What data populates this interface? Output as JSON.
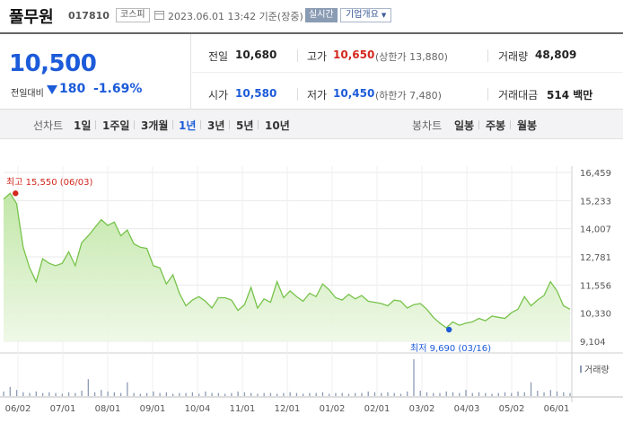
{
  "header": {
    "stock_name": "풀무원",
    "stock_code": "017810",
    "market": "코스피",
    "as_of": "2023.06.01 13:42 기준(장중)",
    "realtime_label": "실시간",
    "company_info_label": "기업개요",
    "icons": [
      "calendar-icon",
      "dropdown-caret-icon"
    ]
  },
  "price": {
    "current": "10,500",
    "change_label": "전일대비",
    "change_direction": "down",
    "change_amount": "180",
    "change_percent": "-1.69%",
    "down_color": "#1c5bd9"
  },
  "details": {
    "prev_close_label": "전일",
    "prev_close": "10,680",
    "high_label": "고가",
    "high": "10,650",
    "upper_limit_text": "(상한가 13,880)",
    "volume_label": "거래량",
    "volume": "48,809",
    "open_label": "시가",
    "open": "10,580",
    "low_label": "저가",
    "low": "10,450",
    "lower_limit_text": "(하한가 7,480)",
    "amount_label": "거래대금",
    "amount": "514 백만"
  },
  "period_bar": {
    "line_chart_label": "선차트",
    "periods": [
      "1일",
      "1주일",
      "3개월",
      "1년",
      "3년",
      "5년",
      "10년"
    ],
    "selected_period": "1년",
    "candle_chart_label": "봉차트",
    "candle_periods": [
      "일봉",
      "주봉",
      "월봉"
    ]
  },
  "chart_data": {
    "type": "area",
    "y_ticks": [
      "16,459",
      "15,233",
      "14,007",
      "12,781",
      "11,556",
      "10,330",
      "9,104"
    ],
    "ylim": [
      9104,
      16459
    ],
    "x_ticks": [
      "06/02",
      "07/01",
      "08/01",
      "09/01",
      "10/04",
      "11/01",
      "12/01",
      "01/02",
      "02/01",
      "03/02",
      "04/03",
      "05/02",
      "06/01"
    ],
    "high_annotation": "최고 15,550 (06/03)",
    "low_annotation": "최저 9,690 (03/16)",
    "volume_legend": "거래량",
    "line_color": "#77c34b",
    "high_color": "#d3281f",
    "low_color": "#1c5bd9",
    "series": [
      {
        "dates": [
          "06/02",
          "06/03",
          "06/08",
          "06/13",
          "06/16",
          "06/21",
          "06/24",
          "06/29",
          "07/01",
          "07/06",
          "07/11",
          "07/14",
          "07/19",
          "07/22",
          "07/27",
          "08/01",
          "08/04",
          "08/09",
          "08/12",
          "08/17",
          "08/22",
          "08/25",
          "08/30",
          "09/01",
          "09/06",
          "09/09",
          "09/15",
          "09/20",
          "09/26",
          "09/30",
          "10/04",
          "10/07",
          "10/12",
          "10/17",
          "10/21",
          "10/26",
          "10/31",
          "11/03",
          "11/08",
          "11/11",
          "11/16",
          "11/21",
          "11/25",
          "11/30",
          "12/05",
          "12/08",
          "12/13",
          "12/16",
          "12/21",
          "12/26",
          "12/29",
          "01/03",
          "01/06",
          "01/11",
          "01/16",
          "01/19",
          "01/25",
          "01/30",
          "02/02",
          "02/07",
          "02/10",
          "02/15",
          "02/20",
          "02/23",
          "02/28",
          "03/03",
          "03/08",
          "03/13",
          "03/16",
          "03/21",
          "03/24",
          "03/29",
          "04/03",
          "04/06",
          "04/11",
          "04/14",
          "04/19",
          "04/24",
          "04/27",
          "05/03",
          "05/08",
          "05/11",
          "05/16",
          "05/19",
          "05/24",
          "05/26",
          "05/31",
          "06/01"
        ],
        "values": [
          15300,
          15550,
          15100,
          13200,
          12300,
          11700,
          12700,
          12500,
          12400,
          12500,
          13000,
          12400,
          13400,
          13700,
          14050,
          14400,
          14150,
          14300,
          13700,
          13950,
          13350,
          13200,
          13150,
          12400,
          12300,
          11600,
          12000,
          11200,
          10650,
          10900,
          11050,
          10850,
          10550,
          11000,
          11000,
          10900,
          10450,
          10700,
          11450,
          10550,
          10950,
          10800,
          11700,
          11000,
          11300,
          11050,
          10850,
          11200,
          11050,
          11600,
          11350,
          11000,
          10900,
          11150,
          10950,
          11100,
          10850,
          10800,
          10750,
          10650,
          10900,
          10850,
          10550,
          10700,
          10750,
          10500,
          10150,
          9900,
          9690,
          9950,
          9800,
          9900,
          9950,
          10100,
          10000,
          10200,
          10150,
          10100,
          10350,
          10500,
          11050,
          10650,
          10900,
          11100,
          11700,
          11300,
          10650,
          10500
        ]
      }
    ],
    "volume_series": {
      "name": "거래량",
      "values": [
        30,
        60,
        40,
        25,
        20,
        30,
        20,
        25,
        20,
        15,
        25,
        20,
        35,
        110,
        25,
        40,
        30,
        25,
        20,
        90,
        20,
        15,
        20,
        30,
        20,
        25,
        15,
        20,
        20,
        25,
        15,
        30,
        20,
        20,
        15,
        20,
        30,
        25,
        20,
        15,
        20,
        20,
        15,
        20,
        25,
        20,
        15,
        20,
        20,
        25,
        15,
        20,
        20,
        15,
        20,
        20,
        30,
        25,
        20,
        25,
        20,
        15,
        30,
        240,
        35,
        25,
        20,
        20,
        30,
        25,
        20,
        40,
        20,
        25,
        20,
        15,
        20,
        25,
        20,
        30,
        25,
        90,
        35,
        25,
        40,
        30,
        25,
        20
      ]
    }
  }
}
